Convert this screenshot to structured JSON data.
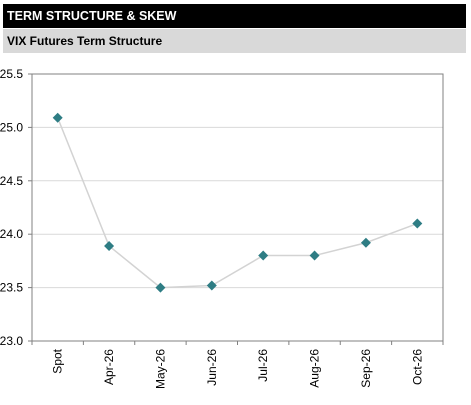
{
  "header": {
    "title": "TERM STRUCTURE & SKEW"
  },
  "panel": {
    "title": "VIX Futures Term Structure"
  },
  "chart_data": {
    "type": "line",
    "title": "",
    "xlabel": "",
    "ylabel": "",
    "categories": [
      "Spot",
      "Apr-26",
      "May-26",
      "Jun-26",
      "Jul-26",
      "Aug-26",
      "Sep-26",
      "Oct-26"
    ],
    "series": [
      {
        "values": [
          25.09,
          23.89,
          23.5,
          23.52,
          23.8,
          23.8,
          23.92,
          24.1
        ]
      }
    ],
    "ylim": [
      23.0,
      25.5
    ],
    "yticks": [
      "23.0",
      "23.5",
      "24.0",
      "24.5",
      "25.0",
      "25.5"
    ],
    "grid": true,
    "legend": "none",
    "colors": {
      "line": "#d3d3d3",
      "marker": "#2e7d84",
      "grid": "#d9d9d9",
      "axis": "#808080"
    }
  }
}
